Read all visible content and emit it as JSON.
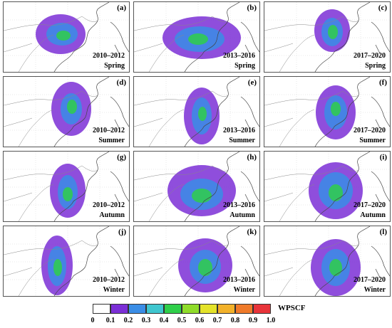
{
  "panels": [
    {
      "letter": "(a)",
      "period": "2010–2012",
      "season": "Spring"
    },
    {
      "letter": "(b)",
      "period": "2013–2016",
      "season": "Spring"
    },
    {
      "letter": "(c)",
      "period": "2017–2020",
      "season": "Spring"
    },
    {
      "letter": "(d)",
      "period": "2010–2012",
      "season": "Summer"
    },
    {
      "letter": "(e)",
      "period": "2013–2016",
      "season": "Summer"
    },
    {
      "letter": "(f)",
      "period": "2017–2020",
      "season": "Summer"
    },
    {
      "letter": "(g)",
      "period": "2010–2012",
      "season": "Autumn"
    },
    {
      "letter": "(h)",
      "period": "2013–2016",
      "season": "Autumn"
    },
    {
      "letter": "(i)",
      "period": "2017–2020",
      "season": "Autumn"
    },
    {
      "letter": "(j)",
      "period": "2010–2012",
      "season": "Winter"
    },
    {
      "letter": "(k)",
      "period": "2013–2016",
      "season": "Winter"
    },
    {
      "letter": "(l)",
      "period": "2017–2020",
      "season": "Winter"
    }
  ],
  "legend": {
    "title": "WPSCF",
    "ticks": [
      "0",
      "0.1",
      "0.2",
      "0.3",
      "0.4",
      "0.5",
      "0.6",
      "0.7",
      "0.8",
      "0.9",
      "1.0"
    ],
    "colors": [
      "#ffffff",
      "#7b2fd6",
      "#3a8de6",
      "#3fc6cf",
      "#2fcf4a",
      "#8fdc2a",
      "#e4e32a",
      "#f2b12a",
      "#ef7a2a",
      "#e8343a"
    ]
  }
}
